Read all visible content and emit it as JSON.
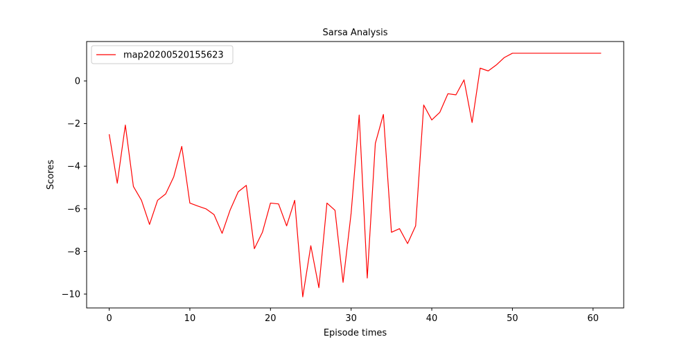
{
  "chart_data": {
    "type": "line",
    "title": "Sarsa Analysis",
    "xlabel": "Episode times",
    "ylabel": "Scores",
    "xlim": [
      -2.8,
      63.8
    ],
    "ylim": [
      -10.65,
      1.85
    ],
    "xticks": [
      0,
      10,
      20,
      30,
      40,
      50,
      60
    ],
    "xtick_labels": [
      "0",
      "10",
      "20",
      "30",
      "40",
      "50",
      "60"
    ],
    "yticks": [
      -10,
      -8,
      -6,
      -4,
      -2,
      0
    ],
    "ytick_labels": [
      "−10",
      "−8",
      "−6",
      "−4",
      "−2",
      "0"
    ],
    "grid": false,
    "legend_position": "top-left",
    "series": [
      {
        "name": "map20200520155623",
        "color": "#ff0000",
        "x": [
          0,
          1,
          2,
          3,
          4,
          5,
          6,
          7,
          8,
          9,
          10,
          11,
          12,
          13,
          14,
          15,
          16,
          17,
          18,
          19,
          20,
          21,
          22,
          23,
          24,
          25,
          26,
          27,
          28,
          29,
          30,
          31,
          32,
          33,
          34,
          35,
          36,
          37,
          38,
          39,
          40,
          41,
          42,
          43,
          44,
          45,
          46,
          47,
          48,
          49,
          50,
          51,
          52,
          53,
          54,
          55,
          56,
          57,
          58,
          59,
          60,
          61
        ],
        "y": [
          -2.5,
          -4.8,
          -2.07,
          -4.95,
          -5.6,
          -6.73,
          -5.6,
          -5.3,
          -4.5,
          -3.07,
          -5.73,
          -5.87,
          -6.0,
          -6.27,
          -7.15,
          -6.05,
          -5.2,
          -4.9,
          -7.87,
          -7.1,
          -5.73,
          -5.77,
          -6.8,
          -5.6,
          -10.13,
          -7.73,
          -9.7,
          -5.73,
          -6.07,
          -9.45,
          -6.2,
          -1.6,
          -9.25,
          -2.93,
          -1.57,
          -7.1,
          -6.93,
          -7.63,
          -6.8,
          -1.13,
          -1.83,
          -1.47,
          -0.6,
          -0.65,
          0.05,
          -1.95,
          0.6,
          0.47,
          0.75,
          1.1,
          1.3,
          1.3,
          1.3,
          1.3,
          1.3,
          1.3,
          1.3,
          1.3,
          1.3,
          1.3,
          1.3,
          1.3
        ]
      }
    ]
  }
}
